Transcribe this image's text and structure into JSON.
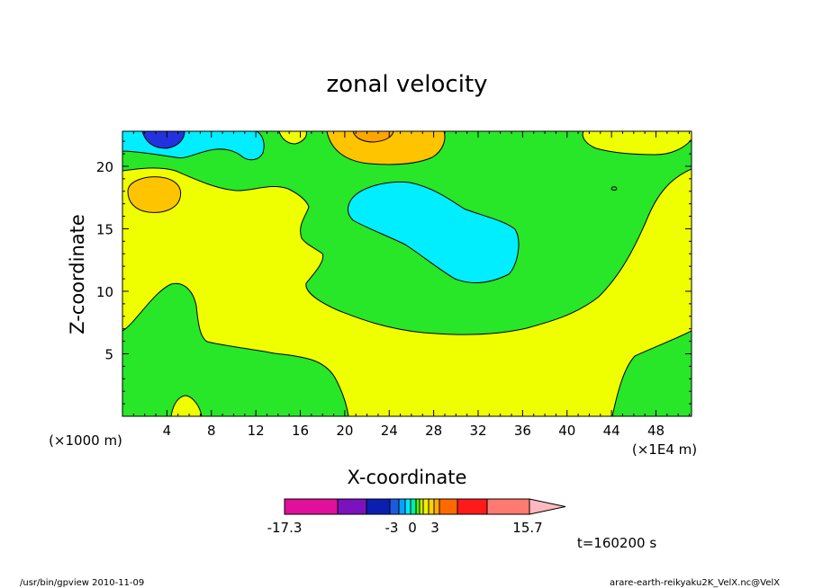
{
  "chart_data": {
    "type": "contour",
    "title": "zonal velocity",
    "xlabel": "X-coordinate",
    "ylabel": "Z-coordinate",
    "x_unit": "(×1E4 m)",
    "y_unit": "(×1000 m)",
    "xlim": [
      0,
      51.2
    ],
    "ylim": [
      0,
      22.8
    ],
    "xticks": [
      4,
      8,
      12,
      16,
      20,
      24,
      28,
      32,
      36,
      40,
      44,
      48
    ],
    "yticks": [
      5,
      10,
      15,
      20
    ],
    "colorbar": {
      "min_label": "-17.3",
      "tick_labels": [
        "-3",
        "0",
        "3"
      ],
      "max_label": "15.7",
      "colors": [
        "#e0109a",
        "#7b12bd",
        "#0a1fb0",
        "#1a5be0",
        "#0aa0ff",
        "#00e8ff",
        "#00f0a0",
        "#55f000",
        "#c8f000",
        "#f0f000",
        "#ffd200",
        "#ffaa00",
        "#ff6a00",
        "#ff1a1a",
        "#ff7a70",
        "#ffb8c0"
      ]
    },
    "regions": [
      {
        "name": "green",
        "color": "#28e628"
      },
      {
        "name": "yellow",
        "color": "#f0ff00"
      },
      {
        "name": "cyan",
        "color": "#00eeff"
      },
      {
        "name": "orange",
        "color": "#ffc400"
      },
      {
        "name": "dark-orange",
        "color": "#ffa500"
      },
      {
        "name": "blue",
        "color": "#2233dd"
      }
    ],
    "time_label": "t=160200 s"
  },
  "footer": {
    "left": "/usr/bin/gpview   2010-11-09",
    "right": "arare-earth-reikyaku2K_VelX.nc@VelX"
  }
}
